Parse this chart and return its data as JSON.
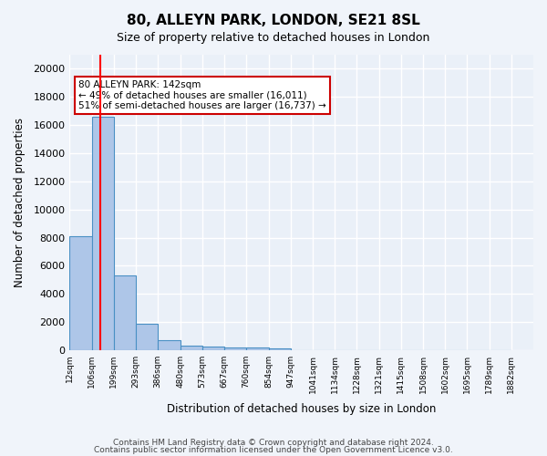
{
  "title": "80, ALLEYN PARK, LONDON, SE21 8SL",
  "subtitle": "Size of property relative to detached houses in London",
  "xlabel": "Distribution of detached houses by size in London",
  "ylabel": "Number of detached properties",
  "bin_labels": [
    "12sqm",
    "106sqm",
    "199sqm",
    "293sqm",
    "386sqm",
    "480sqm",
    "573sqm",
    "667sqm",
    "760sqm",
    "854sqm",
    "947sqm",
    "1041sqm",
    "1134sqm",
    "1228sqm",
    "1321sqm",
    "1415sqm",
    "1508sqm",
    "1602sqm",
    "1695sqm",
    "1789sqm",
    "1882sqm"
  ],
  "bin_edges": [
    12,
    106,
    199,
    293,
    386,
    480,
    573,
    667,
    760,
    854,
    947,
    1041,
    1134,
    1228,
    1321,
    1415,
    1508,
    1602,
    1695,
    1789,
    1882
  ],
  "bar_heights": [
    8100,
    16600,
    5300,
    1850,
    700,
    320,
    230,
    200,
    180,
    130,
    0,
    0,
    0,
    0,
    0,
    0,
    0,
    0,
    0,
    0
  ],
  "bar_color": "#aec6e8",
  "bar_edge_color": "#4a90c4",
  "red_line_x": 142,
  "annotation_title": "80 ALLEYN PARK: 142sqm",
  "annotation_line1": "← 49% of detached houses are smaller (16,011)",
  "annotation_line2": "51% of semi-detached houses are larger (16,737) →",
  "annotation_box_color": "#ffffff",
  "annotation_box_edge": "#cc0000",
  "footer1": "Contains HM Land Registry data © Crown copyright and database right 2024.",
  "footer2": "Contains public sector information licensed under the Open Government Licence v3.0.",
  "bg_color": "#f0f4fa",
  "plot_bg_color": "#eaf0f8",
  "grid_color": "#ffffff",
  "ylim": [
    0,
    21000
  ],
  "yticks": [
    0,
    2000,
    4000,
    6000,
    8000,
    10000,
    12000,
    14000,
    16000,
    18000,
    20000
  ]
}
